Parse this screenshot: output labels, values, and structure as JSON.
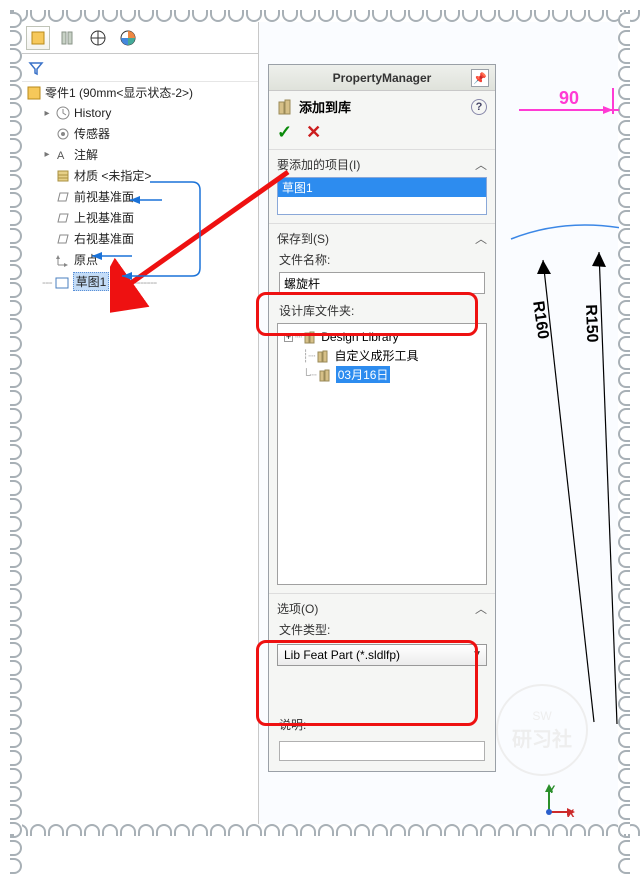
{
  "colors": {
    "highlight": "#e11111",
    "selection": "#2d8cef",
    "dim_pink": "#ff3bd4",
    "sketch_blue": "#3b87e6",
    "ok_green": "#0a8a0a",
    "cancel_red": "#cc1e1e"
  },
  "left_pane": {
    "part_title": "零件1  (90mm<显示状态-2>)",
    "tree": [
      {
        "label": "History",
        "exp": "▸"
      },
      {
        "label": "传感器",
        "exp": ""
      },
      {
        "label": "注解",
        "exp": "▸"
      },
      {
        "label": "材质 <未指定>",
        "exp": "",
        "out": true
      },
      {
        "label": "前视基准面",
        "exp": "",
        "in": true
      },
      {
        "label": "上视基准面",
        "exp": ""
      },
      {
        "label": "右视基准面",
        "exp": ""
      },
      {
        "label": "原点",
        "exp": "",
        "in": true
      }
    ],
    "selected_sketch": "草图1"
  },
  "pm": {
    "title": "PropertyManager",
    "head": "添加到库",
    "sections": {
      "items_h": "要添加的项目(I)",
      "items_sel": "草图1",
      "save_h": "保存到(S)",
      "file_name_label": "文件名称:",
      "file_name_value": "螺旋杆",
      "folder_label": "设计库文件夹:",
      "folder_tree": {
        "root": "Design Library",
        "child1": "自定义成形工具",
        "child2_sel": "03月16日"
      },
      "options_h": "选项(O)",
      "file_type_label": "文件类型:",
      "file_type_value": "Lib Feat Part (*.sldlfp)",
      "desc_label": "说明:"
    }
  },
  "dims": {
    "d90": "90",
    "r160": "R160",
    "r150": "R150"
  },
  "axis": {
    "x": "X",
    "y": "Y"
  },
  "watermark": {
    "small": "SW",
    "big": "研习社"
  }
}
